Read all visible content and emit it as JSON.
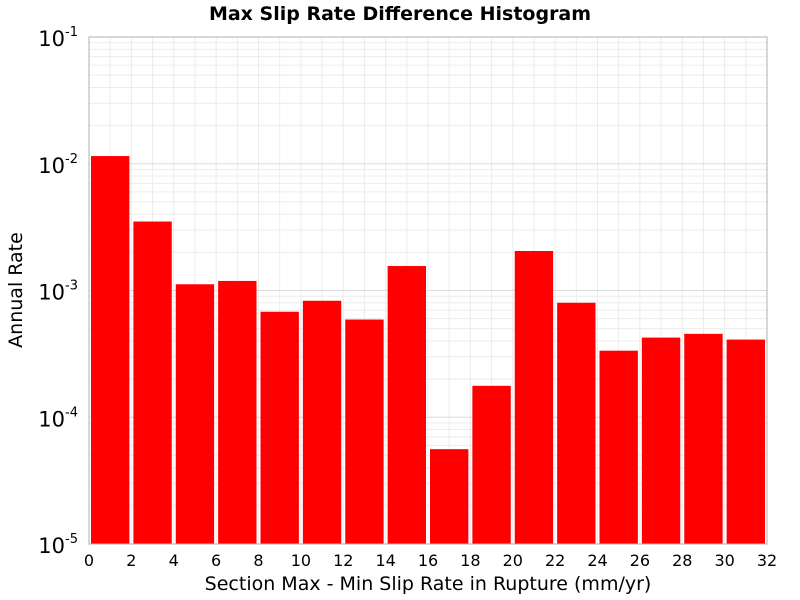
{
  "chart_data": {
    "type": "bar",
    "title": "Max Slip Rate Difference Histogram",
    "xlabel": "Section Max - Min Slip Rate in Rupture (mm/yr)",
    "ylabel": "Annual Rate",
    "xlim": [
      0,
      32
    ],
    "ylim": [
      1e-05,
      0.1
    ],
    "yscale": "log",
    "bin_width": 2,
    "grid": true,
    "x_ticks": [
      "0",
      "2",
      "4",
      "6",
      "8",
      "10",
      "12",
      "14",
      "16",
      "18",
      "20",
      "22",
      "24",
      "26",
      "28",
      "30",
      "32"
    ],
    "y_ticks": [
      {
        "base": "10",
        "exp": "-5"
      },
      {
        "base": "10",
        "exp": "-4"
      },
      {
        "base": "10",
        "exp": "-3"
      },
      {
        "base": "10",
        "exp": "-2"
      },
      {
        "base": "10",
        "exp": "-1"
      }
    ],
    "bar_color": "#ff0000",
    "bins": [
      {
        "x_start": 0,
        "value": 0.0115
      },
      {
        "x_start": 2,
        "value": 0.0035
      },
      {
        "x_start": 4,
        "value": 0.00112
      },
      {
        "x_start": 6,
        "value": 0.00119
      },
      {
        "x_start": 8,
        "value": 0.00068
      },
      {
        "x_start": 10,
        "value": 0.00083
      },
      {
        "x_start": 12,
        "value": 0.00059
      },
      {
        "x_start": 14,
        "value": 0.00156
      },
      {
        "x_start": 16,
        "value": 5.6e-05
      },
      {
        "x_start": 18,
        "value": 0.000177
      },
      {
        "x_start": 20,
        "value": 0.00205
      },
      {
        "x_start": 22,
        "value": 0.0008
      },
      {
        "x_start": 24,
        "value": 0.000335
      },
      {
        "x_start": 26,
        "value": 0.000425
      },
      {
        "x_start": 28,
        "value": 0.000455
      },
      {
        "x_start": 30,
        "value": 0.00041
      }
    ]
  }
}
